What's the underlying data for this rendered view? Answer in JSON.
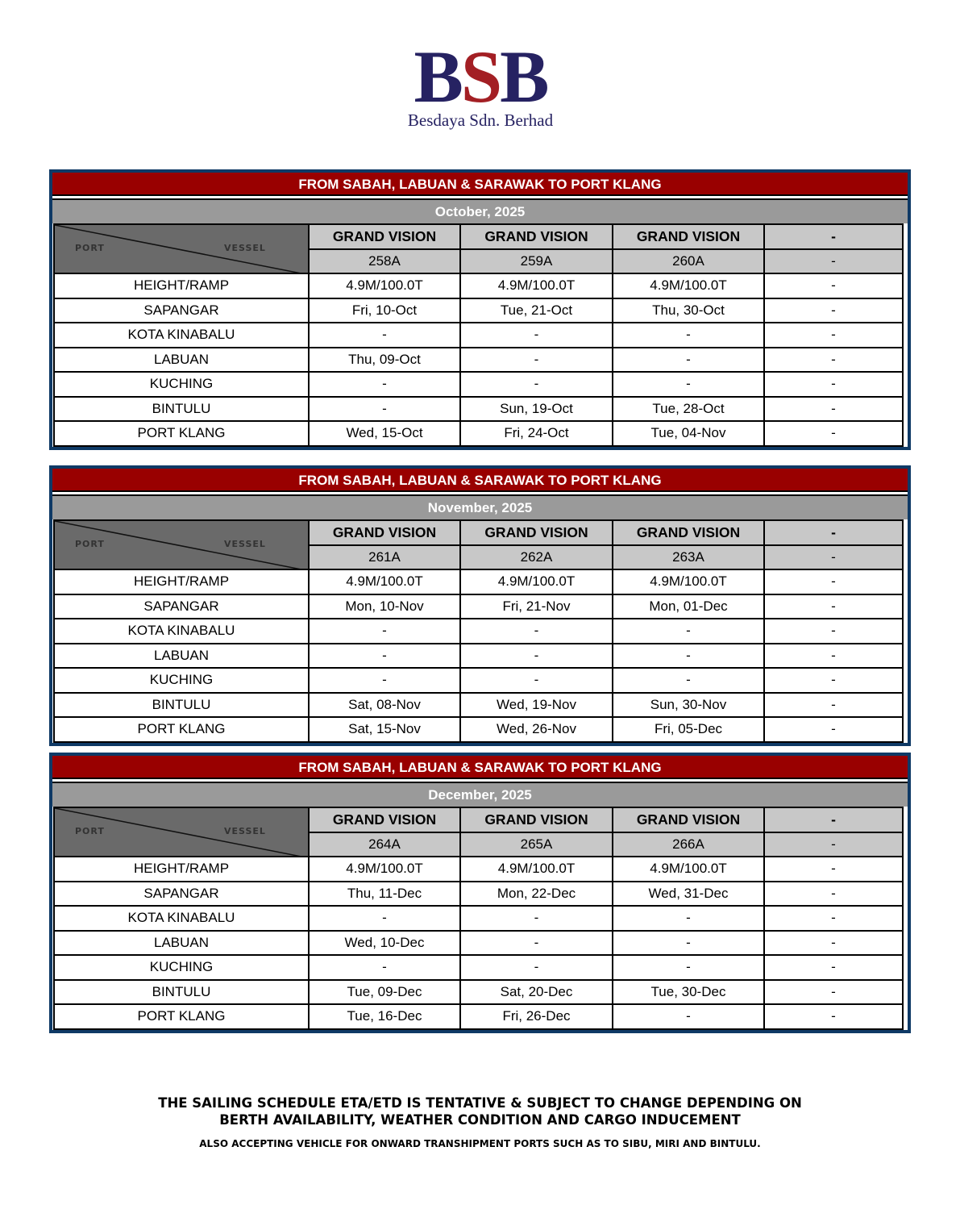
{
  "logo": {
    "letters_1": "B",
    "letters_2": "S",
    "letters_3": "B",
    "company": "Besdaya Sdn. Berhad"
  },
  "corner": {
    "port": "PORT",
    "vessel": "VESSEL"
  },
  "colors": {
    "title_bar": "#990000",
    "month_bar": "#9a9a9a",
    "border": "#0f3a66",
    "header_cell": "#c8c8c8"
  },
  "schedules": [
    {
      "title": "FROM SABAH, LABUAN & SARAWAK TO PORT KLANG",
      "month": "October, 2025",
      "vessels": [
        "GRAND VISION",
        "GRAND VISION",
        "GRAND VISION",
        "-"
      ],
      "voyages": [
        "258A",
        "259A",
        "260A",
        "-"
      ],
      "rows": [
        {
          "port": "HEIGHT/RAMP",
          "values": [
            "4.9M/100.0T",
            "4.9M/100.0T",
            "4.9M/100.0T",
            "-"
          ]
        },
        {
          "port": "SAPANGAR",
          "values": [
            "Fri, 10-Oct",
            "Tue, 21-Oct",
            "Thu, 30-Oct",
            "-"
          ]
        },
        {
          "port": "KOTA KINABALU",
          "values": [
            "-",
            "-",
            "-",
            "-"
          ]
        },
        {
          "port": "LABUAN",
          "values": [
            "Thu, 09-Oct",
            "-",
            "-",
            "-"
          ]
        },
        {
          "port": "KUCHING",
          "values": [
            "-",
            "-",
            "-",
            "-"
          ]
        },
        {
          "port": "BINTULU",
          "values": [
            "-",
            "Sun, 19-Oct",
            "Tue, 28-Oct",
            "-"
          ]
        },
        {
          "port": "PORT KLANG",
          "values": [
            "Wed, 15-Oct",
            "Fri, 24-Oct",
            "Tue, 04-Nov",
            "-"
          ]
        }
      ]
    },
    {
      "title": "FROM SABAH, LABUAN & SARAWAK TO PORT KLANG",
      "month": "November, 2025",
      "vessels": [
        "GRAND VISION",
        "GRAND VISION",
        "GRAND VISION",
        "-"
      ],
      "voyages": [
        "261A",
        "262A",
        "263A",
        "-"
      ],
      "rows": [
        {
          "port": "HEIGHT/RAMP",
          "values": [
            "4.9M/100.0T",
            "4.9M/100.0T",
            "4.9M/100.0T",
            "-"
          ]
        },
        {
          "port": "SAPANGAR",
          "values": [
            "Mon, 10-Nov",
            "Fri, 21-Nov",
            "Mon, 01-Dec",
            "-"
          ]
        },
        {
          "port": "KOTA KINABALU",
          "values": [
            "-",
            "-",
            "-",
            "-"
          ]
        },
        {
          "port": "LABUAN",
          "values": [
            "-",
            "-",
            "-",
            "-"
          ]
        },
        {
          "port": "KUCHING",
          "values": [
            "-",
            "-",
            "-",
            "-"
          ]
        },
        {
          "port": "BINTULU",
          "values": [
            "Sat, 08-Nov",
            "Wed, 19-Nov",
            "Sun, 30-Nov",
            "-"
          ]
        },
        {
          "port": "PORT KLANG",
          "values": [
            "Sat, 15-Nov",
            "Wed, 26-Nov",
            "Fri, 05-Dec",
            "-"
          ]
        }
      ]
    },
    {
      "title": "FROM SABAH, LABUAN & SARAWAK TO PORT KLANG",
      "month": "December, 2025",
      "vessels": [
        "GRAND VISION",
        "GRAND VISION",
        "GRAND VISION",
        "-"
      ],
      "voyages": [
        "264A",
        "265A",
        "266A",
        "-"
      ],
      "rows": [
        {
          "port": "HEIGHT/RAMP",
          "values": [
            "4.9M/100.0T",
            "4.9M/100.0T",
            "4.9M/100.0T",
            "-"
          ]
        },
        {
          "port": "SAPANGAR",
          "values": [
            "Thu, 11-Dec",
            "Mon, 22-Dec",
            "Wed, 31-Dec",
            "-"
          ]
        },
        {
          "port": "KOTA KINABALU",
          "values": [
            "-",
            "-",
            "-",
            "-"
          ]
        },
        {
          "port": "LABUAN",
          "values": [
            "Wed, 10-Dec",
            "-",
            "-",
            "-"
          ]
        },
        {
          "port": "KUCHING",
          "values": [
            "-",
            "-",
            "-",
            "-"
          ]
        },
        {
          "port": "BINTULU",
          "values": [
            "Tue, 09-Dec",
            "Sat, 20-Dec",
            "Tue, 30-Dec",
            "-"
          ]
        },
        {
          "port": "PORT KLANG",
          "values": [
            "Tue, 16-Dec",
            "Fri, 26-Dec",
            "-",
            "-"
          ]
        }
      ]
    }
  ],
  "footer": {
    "line1": "THE SAILING SCHEDULE ETA/ETD IS TENTATIVE & SUBJECT TO CHANGE DEPENDING ON",
    "line2": "BERTH AVAILABILITY, WEATHER CONDITION AND CARGO INDUCEMENT",
    "line3": "ALSO ACCEPTING VEHICLE FOR ONWARD TRANSHIPMENT PORTS SUCH AS TO SIBU, MIRI AND BINTULU."
  }
}
